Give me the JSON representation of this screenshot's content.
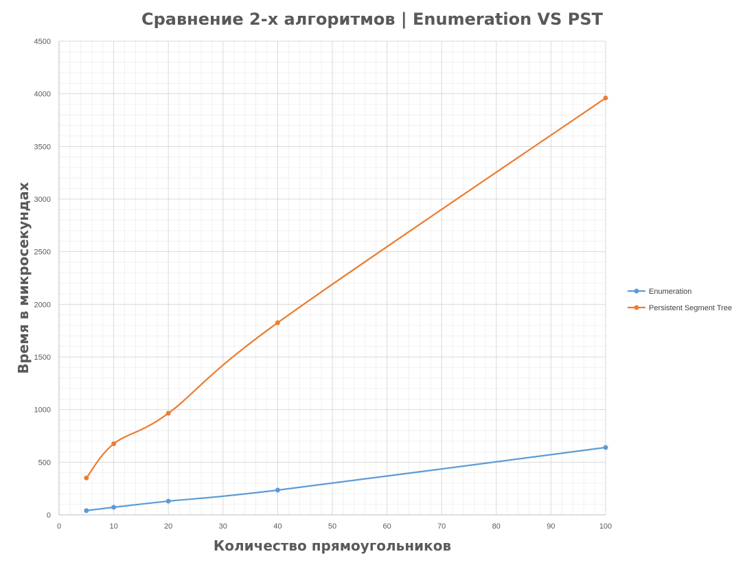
{
  "chart_data": {
    "type": "line",
    "title": "Сравнение 2-х алгоритмов | Enumeration VS PST",
    "xlabel": "Количество прямоугольников",
    "ylabel": "Время в микросекундах",
    "xlim": [
      0,
      100
    ],
    "ylim": [
      0,
      4500
    ],
    "x_ticks": [
      0,
      10,
      20,
      30,
      40,
      50,
      60,
      70,
      80,
      90,
      100
    ],
    "y_ticks": [
      0,
      500,
      1000,
      1500,
      2000,
      2500,
      3000,
      3500,
      4000,
      4500
    ],
    "grid": true,
    "legend_position": "right",
    "smooth": true,
    "series": [
      {
        "name": "Enumeration",
        "color": "#5b9bd5",
        "points": [
          {
            "x": 5,
            "y": 40
          },
          {
            "x": 10,
            "y": 72
          },
          {
            "x": 20,
            "y": 130
          },
          {
            "x": 40,
            "y": 235
          },
          {
            "x": 100,
            "y": 640
          }
        ]
      },
      {
        "name": "Persistent Segment Tree",
        "color": "#ed7d31",
        "points": [
          {
            "x": 5,
            "y": 350
          },
          {
            "x": 10,
            "y": 675
          },
          {
            "x": 20,
            "y": 965
          },
          {
            "x": 40,
            "y": 1825
          },
          {
            "x": 100,
            "y": 3960
          }
        ]
      }
    ]
  }
}
